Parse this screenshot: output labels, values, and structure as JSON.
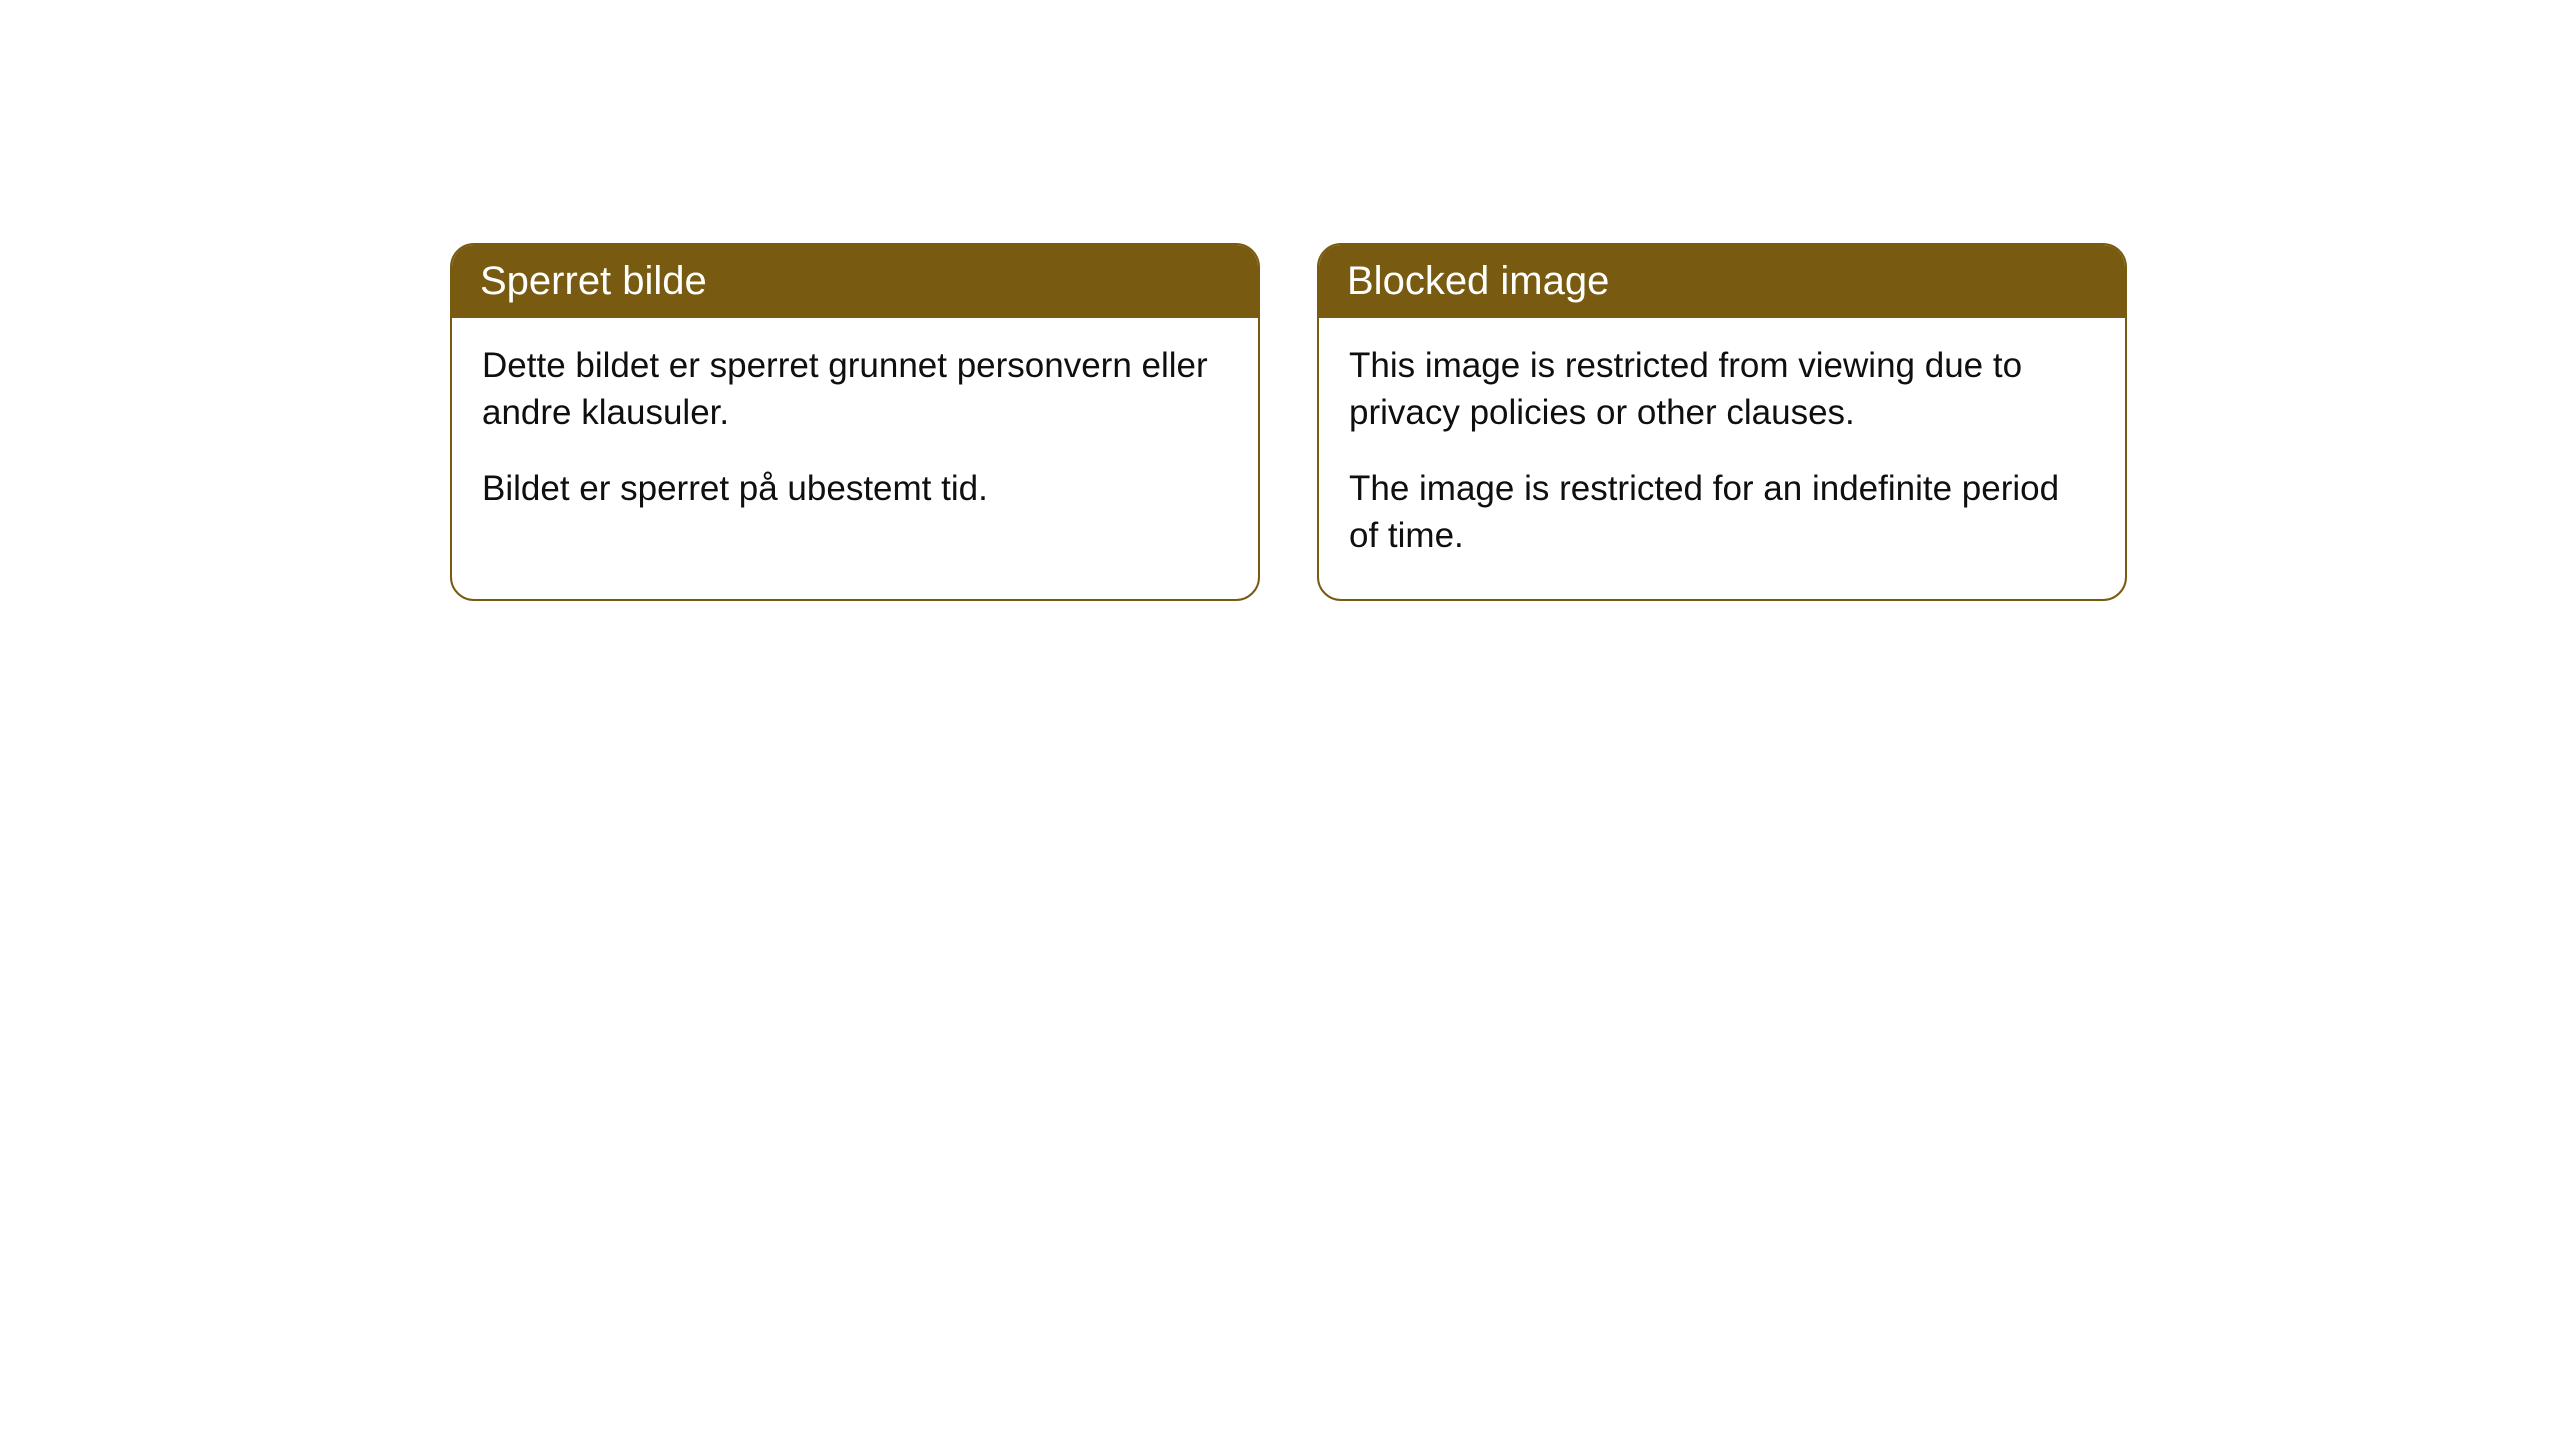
{
  "cards": [
    {
      "title": "Sperret bilde",
      "paragraph1": "Dette bildet er sperret grunnet personvern eller andre klausuler.",
      "paragraph2": "Bildet er sperret på ubestemt tid."
    },
    {
      "title": "Blocked image",
      "paragraph1": "This image is restricted from viewing due to privacy policies or other clauses.",
      "paragraph2": "The image is restricted for an indefinite period of time."
    }
  ],
  "styling": {
    "header_bg_color": "#785a11",
    "header_text_color": "#ffffff",
    "border_color": "#785a11",
    "body_bg_color": "#ffffff",
    "body_text_color": "#0f0f0f",
    "border_radius": "24px",
    "title_fontsize": 40,
    "body_fontsize": 35
  }
}
